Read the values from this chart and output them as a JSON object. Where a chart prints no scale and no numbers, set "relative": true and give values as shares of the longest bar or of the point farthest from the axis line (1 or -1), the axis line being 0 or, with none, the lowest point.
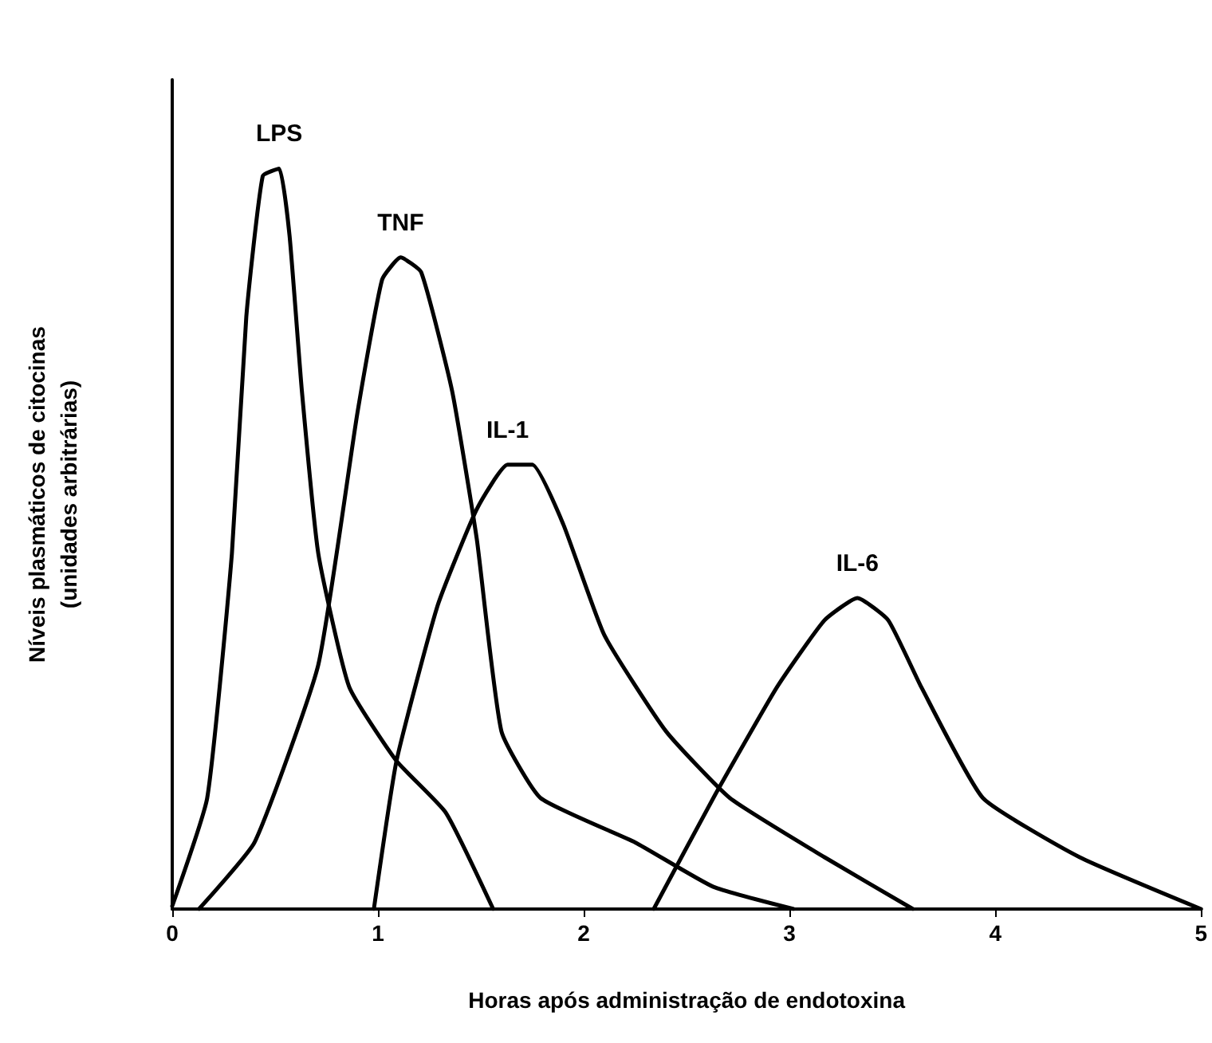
{
  "chart_data": {
    "type": "line",
    "relative": true,
    "xlabel": "Horas após administração de endotoxina",
    "ylabel": "Níveis plasmáticos de citocinas\n(unidades arbitrárias)",
    "xlim": [
      0,
      5
    ],
    "xticks": [
      0,
      1,
      2,
      3,
      4,
      5
    ],
    "grid": false,
    "legend": false,
    "marker": "none",
    "line_style": "solid",
    "series": [
      {
        "name": "LPS",
        "color": "#000000",
        "x": [
          0,
          0.17,
          0.29,
          0.36,
          0.44,
          0.52,
          0.57,
          0.63,
          0.71,
          0.86,
          1.09,
          1.33,
          1.56
        ],
        "values": [
          0.004,
          0.15,
          0.48,
          0.8,
          0.99,
          1,
          0.91,
          0.7,
          0.48,
          0.3,
          0.2,
          0.13,
          0
        ]
      },
      {
        "name": "TNF",
        "color": "#000000",
        "x": [
          0.13,
          0.4,
          0.71,
          0.9,
          1.02,
          1.11,
          1.21,
          1.36,
          1.48,
          1.6,
          1.79,
          2.25,
          2.63,
          3.02
        ],
        "values": [
          0,
          0.09,
          0.33,
          0.67,
          0.85,
          0.88,
          0.86,
          0.7,
          0.5,
          0.24,
          0.15,
          0.09,
          0.03,
          0
        ]
      },
      {
        "name": "IL-1",
        "color": "#000000",
        "x": [
          0.98,
          1.09,
          1.29,
          1.48,
          1.63,
          1.75,
          1.9,
          2.1,
          2.4,
          2.71,
          3.17,
          3.6
        ],
        "values": [
          0,
          0.2,
          0.41,
          0.54,
          0.6,
          0.6,
          0.52,
          0.37,
          0.24,
          0.15,
          0.07,
          0
        ]
      },
      {
        "name": "IL-6",
        "color": "#000000",
        "x": [
          2.34,
          2.63,
          2.94,
          3.17,
          3.33,
          3.48,
          3.64,
          3.94,
          4.41,
          5
        ],
        "values": [
          0,
          0.15,
          0.3,
          0.39,
          0.42,
          0.39,
          0.3,
          0.15,
          0.07,
          0
        ]
      }
    ]
  }
}
